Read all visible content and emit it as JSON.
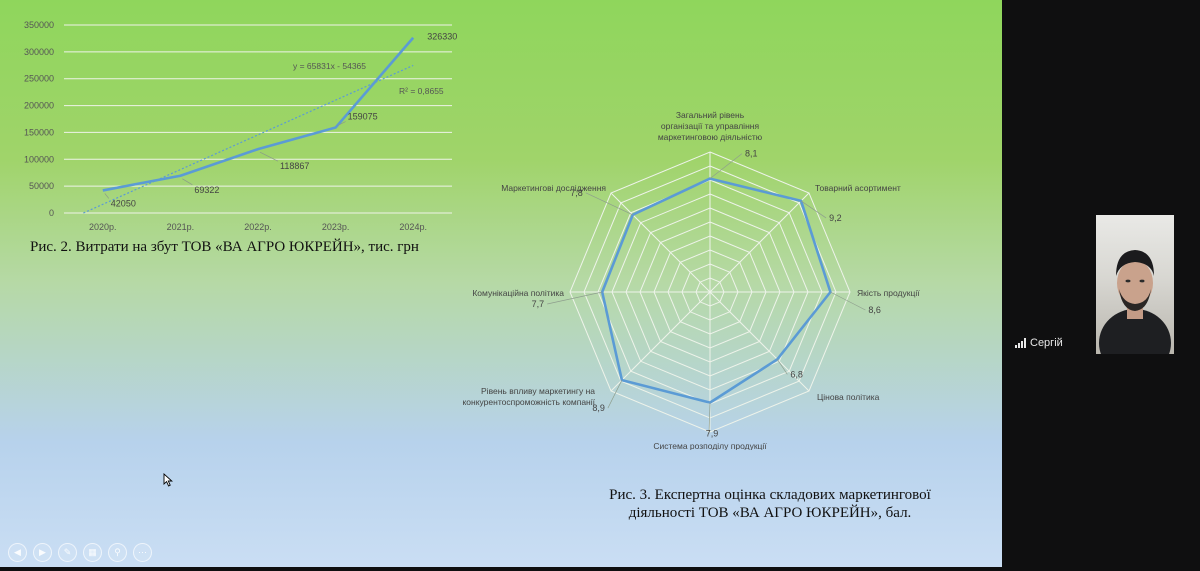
{
  "slide": {
    "fig2_caption": "Рис. 2. Витрати на збут ТОВ «ВА АГРО ЮКРЕЙН», тис. грн",
    "fig3_caption_line1": "Рис. 3. Експертна оцінка складових маркетингової",
    "fig3_caption_line2": "діяльності ТОВ «ВА АГРО ЮКРЕЙН», бал."
  },
  "chart_data": [
    {
      "type": "line",
      "title": "",
      "categories": [
        "2020р.",
        "2021р.",
        "2022р.",
        "2023р.",
        "2024р."
      ],
      "series": [
        {
          "values": [
            42050,
            69322,
            118867,
            159075,
            326330
          ]
        }
      ],
      "data_labels": [
        "42050",
        "69322",
        "118867",
        "159075",
        "326330"
      ],
      "y_ticks": [
        "0",
        "50000",
        "100000",
        "150000",
        "200000",
        "250000",
        "300000",
        "350000"
      ],
      "ylim": [
        0,
        350000
      ],
      "trendline": {
        "equation": "y = 65831x - 54365",
        "r2": "R² = 0,8655"
      },
      "grid": true,
      "color": "#5b9bd5"
    },
    {
      "type": "radar",
      "categories": [
        "Загальний рівень організації та управління маркетинговою діяльністю",
        "Товарний асортимент",
        "Якість продукції",
        "Цінова політика",
        "Система розподілу продукції",
        "Рівень впливу маркетингу на конкурентоспроможність компанії",
        "Комунікаційна політика",
        "Маркетингові дослідження"
      ],
      "values": [
        8.1,
        9.2,
        8.6,
        6.8,
        7.9,
        8.9,
        7.7,
        7.8
      ],
      "value_labels": [
        "8,1",
        "9,2",
        "8,6",
        "6,8",
        "7,9",
        "8,9",
        "7,7",
        "7,8"
      ],
      "rmax": 10,
      "rings": 10,
      "color": "#5b9bd5"
    }
  ],
  "participant": {
    "name": "Сергій"
  },
  "colors": {
    "series": "#5b9bd5",
    "grid": "#eef3e8"
  }
}
